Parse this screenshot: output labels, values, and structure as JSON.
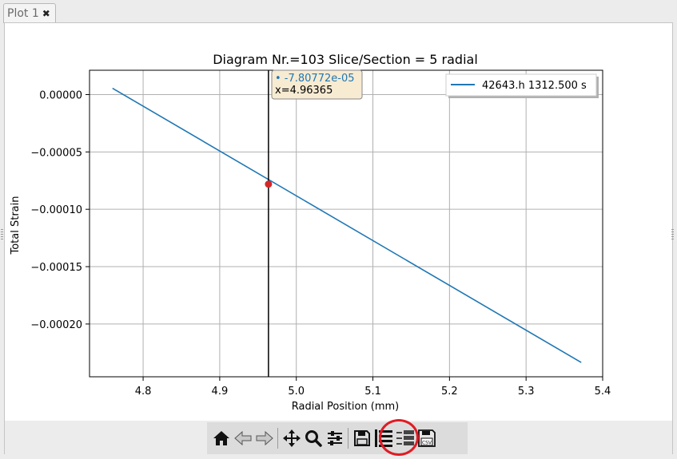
{
  "tab": {
    "label": "Plot 1",
    "close_glyph": "✖"
  },
  "chart_data": {
    "type": "line",
    "title": "Diagram Nr.=103 Slice/Section = 5 radial",
    "xlabel": "Radial Position (mm)",
    "ylabel": "Total Strain",
    "xlim": [
      4.73,
      5.4
    ],
    "ylim": [
      -0.000246,
      2.12e-05
    ],
    "x_ticks": [
      4.8,
      4.9,
      5.0,
      5.1,
      5.2,
      5.3,
      5.4
    ],
    "x_tick_labels": [
      "4.8",
      "4.9",
      "5.0",
      "5.1",
      "5.2",
      "5.3",
      "5.4"
    ],
    "y_ticks": [
      0.0,
      -5e-05,
      -0.0001,
      -0.00015,
      -0.0002
    ],
    "y_tick_labels": [
      "0.00000",
      "−0.00005",
      "−0.00010",
      "−0.00015",
      "−0.00020"
    ],
    "grid": true,
    "legend_position": "top-right",
    "series": [
      {
        "name": "42643.h 1312.500 s",
        "color": "#1f77b4",
        "x": [
          4.76,
          5.372
        ],
        "y": [
          5.5e-06,
          -0.0002335
        ]
      }
    ],
    "cursor": {
      "x": 4.96365,
      "y": -7.80772e-05,
      "marker_color": "#d62728",
      "tooltip_value": "• -7.80772e-05",
      "tooltip_x": "x=4.96365"
    }
  },
  "toolbar": {
    "buttons": [
      {
        "name": "home-icon"
      },
      {
        "name": "back-arrow-icon"
      },
      {
        "name": "forward-arrow-icon"
      },
      {
        "name": "separator"
      },
      {
        "name": "pan-icon"
      },
      {
        "name": "zoom-icon"
      },
      {
        "name": "configure-subplots-icon"
      },
      {
        "name": "separator"
      },
      {
        "name": "save-icon"
      },
      {
        "name": "legend-toggle-icon"
      },
      {
        "name": "data-labels-icon"
      },
      {
        "name": "export-csv-icon"
      }
    ],
    "csv_label": "CSV"
  }
}
